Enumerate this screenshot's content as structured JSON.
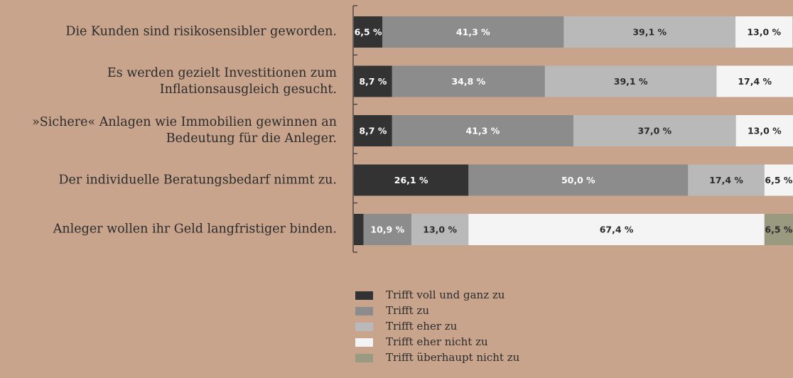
{
  "chart_data": {
    "type": "stacked-barh",
    "categories": [
      "Die Kunden sind risikosensibler geworden.",
      "Es werden gezielt Investitionen zum Inflationsausgleich gesucht.",
      "»Sichere« Anlagen wie Immobilien gewinnen an Bedeutung für die Anleger.",
      "Der individuelle Beratungsbedarf nimmt zu.",
      "Anleger wollen ihr Geld langfristiger binden."
    ],
    "series": [
      {
        "name": "Trifft voll und ganz zu",
        "color": "#333333",
        "label_color": "#ffffff",
        "values": [
          6.5,
          8.7,
          8.7,
          26.1,
          2.2
        ],
        "value_labels": [
          "6,5 %",
          "8,7 %",
          "8,7 %",
          "26,1 %",
          null
        ]
      },
      {
        "name": "Trifft zu",
        "color": "#8c8c8c",
        "label_color": "#ffffff",
        "values": [
          41.3,
          34.8,
          41.3,
          50.0,
          10.9
        ],
        "value_labels": [
          "41,3 %",
          "34,8 %",
          "41,3 %",
          "50,0 %",
          "10,9 %"
        ]
      },
      {
        "name": "Trifft eher zu",
        "color": "#b9b9b9",
        "label_color": "#2b2b2b",
        "values": [
          39.1,
          39.1,
          37.0,
          17.4,
          13.0
        ],
        "value_labels": [
          "39,1 %",
          "39,1 %",
          "37,0 %",
          "17,4 %",
          "13,0 %"
        ]
      },
      {
        "name": "Trifft eher nicht zu",
        "color": "#f4f4f4",
        "label_color": "#2b2b2b",
        "values": [
          13.0,
          17.4,
          13.0,
          6.5,
          67.4
        ],
        "value_labels": [
          "13,0 %",
          "17,4 %",
          "13,0 %",
          "6,5 %",
          "67,4 %"
        ]
      },
      {
        "name": "Trifft überhaupt nicht zu",
        "color": "#9a9a80",
        "label_color": "#2b2b2b",
        "values": [
          0,
          0,
          0,
          0,
          6.5
        ],
        "value_labels": [
          null,
          null,
          null,
          null,
          "6,5 %"
        ]
      }
    ]
  }
}
